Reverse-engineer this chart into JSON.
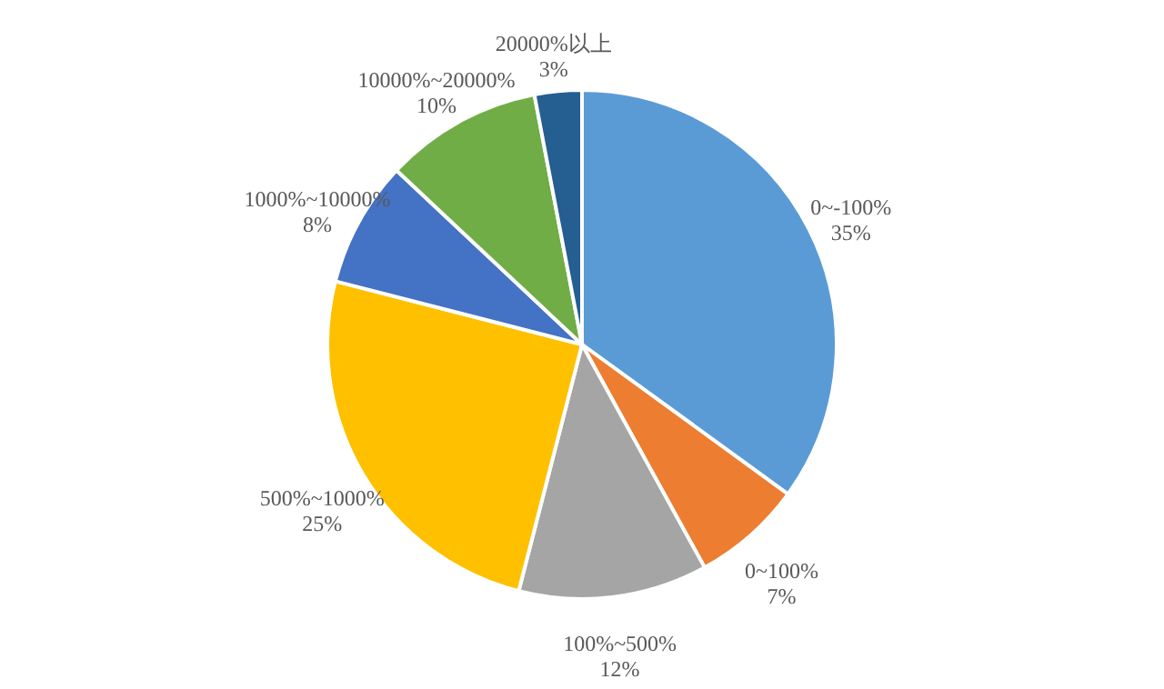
{
  "chart_data": {
    "type": "pie",
    "categories": [
      "0~-100%",
      "0~100%",
      "100%~500%",
      "500%~1000%",
      "1000%~10000%",
      "10000%~20000%",
      "20000%以上"
    ],
    "values": [
      35,
      7,
      12,
      25,
      8,
      10,
      3
    ],
    "value_labels": [
      "35%",
      "7%",
      "12%",
      "25%",
      "8%",
      "10%",
      "3%"
    ],
    "colors": [
      "#5b9bd5",
      "#ed7d31",
      "#a5a5a5",
      "#ffc000",
      "#4472c4",
      "#70ad47",
      "#255e91"
    ],
    "legend": false
  }
}
